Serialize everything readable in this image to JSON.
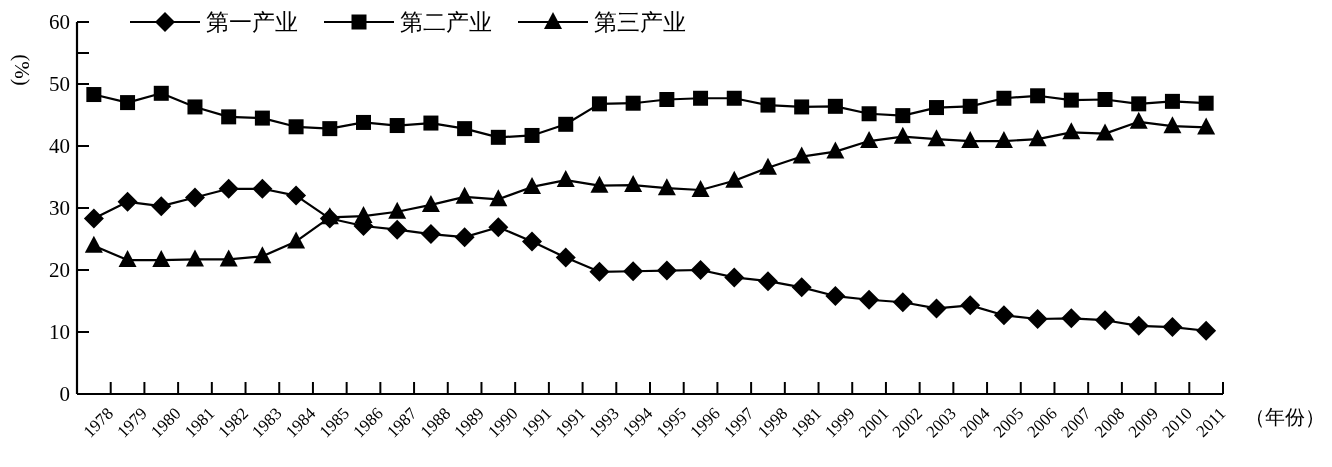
{
  "chart_data": {
    "type": "line",
    "ylabel": "(%)",
    "xlabel": "（年份）",
    "categories": [
      "1978",
      "1979",
      "1980",
      "1981",
      "1982",
      "1983",
      "1984",
      "1985",
      "1986",
      "1987",
      "1988",
      "1989",
      "1990",
      "1991",
      "1991",
      "1993",
      "1994",
      "1995",
      "1996",
      "1997",
      "1998",
      "1981",
      "1999",
      "2001",
      "2002",
      "2003",
      "2004",
      "2005",
      "2006",
      "2007",
      "2008",
      "2009",
      "2010",
      "2011"
    ],
    "series": [
      {
        "name": "第一产业",
        "color": "#000000",
        "marker": "diamond",
        "values": [
          28.3,
          31.0,
          30.3,
          31.7,
          33.1,
          33.1,
          32.0,
          28.3,
          27.1,
          26.5,
          25.8,
          25.3,
          26.9,
          24.6,
          22.0,
          19.7,
          19.8,
          19.9,
          20.0,
          18.8,
          18.2,
          17.2,
          15.8,
          15.2,
          14.8,
          13.8,
          14.3,
          12.7,
          12.1,
          12.2,
          11.9,
          11.0,
          10.8,
          10.2
        ]
      },
      {
        "name": "第二产业",
        "color": "#000000",
        "marker": "square",
        "values": [
          48.3,
          47.0,
          48.5,
          46.3,
          44.7,
          44.5,
          43.1,
          42.8,
          43.8,
          43.3,
          43.7,
          42.8,
          41.4,
          41.7,
          43.5,
          46.8,
          46.9,
          47.5,
          47.7,
          47.7,
          46.6,
          46.3,
          46.4,
          45.2,
          44.9,
          46.2,
          46.4,
          47.7,
          48.1,
          47.4,
          47.5,
          46.8,
          47.2,
          46.9
        ]
      },
      {
        "name": "第三产业",
        "color": "#000000",
        "marker": "triangle",
        "values": [
          23.9,
          21.6,
          21.6,
          21.7,
          21.7,
          22.2,
          24.6,
          28.5,
          28.7,
          29.4,
          30.5,
          31.8,
          31.4,
          33.4,
          34.5,
          33.6,
          33.7,
          33.2,
          32.9,
          34.4,
          36.5,
          38.3,
          39.1,
          40.8,
          41.5,
          41.1,
          40.8,
          40.8,
          41.1,
          42.2,
          42.0,
          43.9,
          43.2,
          43.0
        ]
      }
    ],
    "ylim": [
      0,
      60
    ],
    "yticks": [
      0,
      10,
      20,
      30,
      40,
      50,
      {
        "value": 55,
        "label": null
      },
      60
    ],
    "grid": false,
    "legend": "top",
    "line_style": "solid"
  }
}
